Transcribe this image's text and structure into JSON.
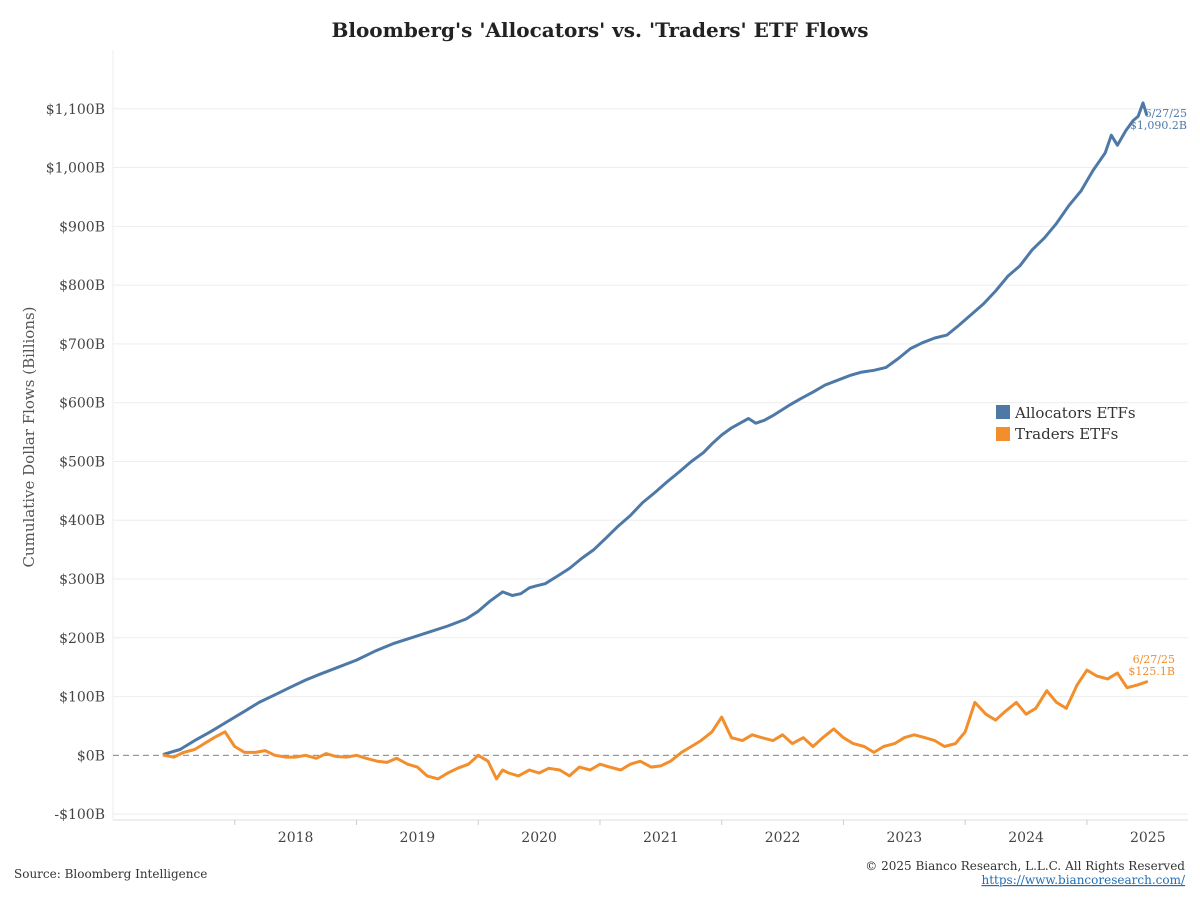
{
  "chart_data": {
    "type": "line",
    "title": "Bloomberg's 'Allocators' vs. 'Traders' ETF Flows",
    "ylabel": "Cumulative Dollar Flows (Billions)",
    "xlabel": "",
    "x_tick_labels": [
      "2018",
      "2019",
      "2020",
      "2021",
      "2022",
      "2023",
      "2024",
      "2025"
    ],
    "y_tick_labels": [
      "-$100B",
      "$0B",
      "$100B",
      "$200B",
      "$300B",
      "$400B",
      "$500B",
      "$600B",
      "$700B",
      "$800B",
      "$900B",
      "$1,000B",
      "$1,100B"
    ],
    "y_tick_values": [
      -100,
      0,
      100,
      200,
      300,
      400,
      500,
      600,
      700,
      800,
      900,
      1000,
      1100
    ],
    "ylim": [
      -110,
      1200
    ],
    "xlim": [
      2017.0,
      2025.83
    ],
    "grid": true,
    "zero_line": "dashed",
    "legend_placement": "right",
    "series": [
      {
        "name": "Allocators ETFs",
        "color": "#4e79a7",
        "x": [
          2017.42,
          2017.55,
          2017.67,
          2017.8,
          2017.92,
          2018.08,
          2018.2,
          2018.33,
          2018.45,
          2018.58,
          2018.7,
          2018.85,
          2019.0,
          2019.15,
          2019.3,
          2019.45,
          2019.6,
          2019.75,
          2019.9,
          2020.0,
          2020.1,
          2020.2,
          2020.28,
          2020.35,
          2020.42,
          2020.47,
          2020.55,
          2020.65,
          2020.75,
          2020.85,
          2020.95,
          2021.05,
          2021.15,
          2021.25,
          2021.35,
          2021.45,
          2021.55,
          2021.65,
          2021.75,
          2021.85,
          2021.92,
          2022.0,
          2022.08,
          2022.15,
          2022.22,
          2022.28,
          2022.35,
          2022.42,
          2022.55,
          2022.65,
          2022.75,
          2022.85,
          2022.95,
          2023.05,
          2023.15,
          2023.25,
          2023.35,
          2023.45,
          2023.55,
          2023.65,
          2023.75,
          2023.85,
          2023.95,
          2024.05,
          2024.15,
          2024.25,
          2024.35,
          2024.45,
          2024.55,
          2024.65,
          2024.75,
          2024.85,
          2024.95,
          2025.05,
          2025.1,
          2025.15,
          2025.2,
          2025.25,
          2025.32,
          2025.38,
          2025.42,
          2025.46,
          2025.49
        ],
        "values": [
          2,
          10,
          25,
          40,
          55,
          75,
          90,
          103,
          115,
          128,
          138,
          150,
          162,
          177,
          190,
          200,
          210,
          220,
          232,
          245,
          263,
          278,
          272,
          275,
          285,
          288,
          292,
          305,
          318,
          335,
          350,
          370,
          390,
          408,
          430,
          447,
          465,
          482,
          500,
          515,
          530,
          545,
          557,
          565,
          573,
          565,
          570,
          578,
          595,
          607,
          618,
          630,
          638,
          646,
          652,
          655,
          660,
          675,
          692,
          702,
          710,
          715,
          732,
          750,
          768,
          790,
          815,
          833,
          860,
          880,
          905,
          935,
          960,
          995,
          1010,
          1025,
          1055,
          1038,
          1063,
          1080,
          1087,
          1110,
          1090.2
        ]
      },
      {
        "name": "Traders ETFs",
        "color": "#f28e2b",
        "x": [
          2017.42,
          2017.5,
          2017.58,
          2017.67,
          2017.75,
          2017.83,
          2017.92,
          2018.0,
          2018.08,
          2018.17,
          2018.25,
          2018.33,
          2018.42,
          2018.5,
          2018.58,
          2018.67,
          2018.75,
          2018.83,
          2018.92,
          2019.0,
          2019.08,
          2019.17,
          2019.25,
          2019.33,
          2019.42,
          2019.5,
          2019.58,
          2019.67,
          2019.75,
          2019.83,
          2019.92,
          2020.0,
          2020.08,
          2020.15,
          2020.2,
          2020.25,
          2020.33,
          2020.42,
          2020.5,
          2020.58,
          2020.67,
          2020.75,
          2020.83,
          2020.92,
          2021.0,
          2021.08,
          2021.17,
          2021.25,
          2021.33,
          2021.42,
          2021.5,
          2021.58,
          2021.67,
          2021.75,
          2021.83,
          2021.92,
          2022.0,
          2022.08,
          2022.17,
          2022.25,
          2022.33,
          2022.42,
          2022.5,
          2022.58,
          2022.67,
          2022.75,
          2022.83,
          2022.92,
          2023.0,
          2023.08,
          2023.17,
          2023.25,
          2023.33,
          2023.42,
          2023.5,
          2023.58,
          2023.67,
          2023.75,
          2023.83,
          2023.92,
          2024.0,
          2024.08,
          2024.17,
          2024.25,
          2024.33,
          2024.42,
          2024.5,
          2024.58,
          2024.67,
          2024.75,
          2024.83,
          2024.92,
          2025.0,
          2025.08,
          2025.17,
          2025.25,
          2025.33,
          2025.42,
          2025.49
        ],
        "values": [
          0,
          -3,
          5,
          10,
          20,
          30,
          40,
          15,
          5,
          5,
          8,
          0,
          -3,
          -3,
          0,
          -5,
          3,
          -2,
          -3,
          0,
          -5,
          -10,
          -12,
          -5,
          -15,
          -20,
          -35,
          -40,
          -30,
          -22,
          -15,
          0,
          -10,
          -40,
          -25,
          -30,
          -35,
          -25,
          -30,
          -22,
          -25,
          -35,
          -20,
          -25,
          -15,
          -20,
          -25,
          -15,
          -10,
          -20,
          -18,
          -10,
          5,
          15,
          25,
          40,
          65,
          30,
          25,
          35,
          30,
          25,
          35,
          20,
          30,
          15,
          30,
          45,
          30,
          20,
          15,
          5,
          15,
          20,
          30,
          35,
          30,
          25,
          15,
          20,
          40,
          90,
          70,
          60,
          75,
          90,
          70,
          80,
          110,
          90,
          80,
          120,
          145,
          135,
          130,
          140,
          115,
          120,
          125.1
        ]
      }
    ],
    "annotations": [
      {
        "date": "6/27/25",
        "value_text": "$1,090.2B",
        "series": "Allocators ETFs"
      },
      {
        "date": "6/27/25",
        "value_text": "$125.1B",
        "series": "Traders ETFs"
      }
    ]
  },
  "footer": {
    "source": "Source: Bloomberg Intelligence",
    "copyright": "© 2025 Bianco Research, L.L.C. All Rights Reserved",
    "link": "https://www.biancoresearch.com/"
  },
  "colors": {
    "allocators": "#4e79a7",
    "traders": "#f28e2b",
    "grid": "#eeeeee",
    "zero_line": "#999999",
    "link": "#1f6fb5"
  }
}
